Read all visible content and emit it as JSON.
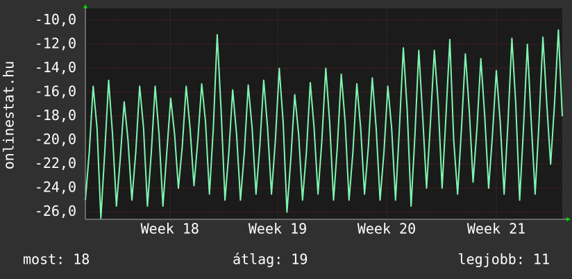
{
  "chart_data": {
    "type": "line",
    "y_label": "onlinestat.hu",
    "series": [
      {
        "name": "onlinestat.hu",
        "color": "#7ff5b0",
        "values": [
          -25,
          -21,
          -15.5,
          -19,
          -26.5,
          -21,
          -15,
          -19.5,
          -25.5,
          -21.5,
          -16.8,
          -20,
          -25,
          -21,
          -15.5,
          -19,
          -25.5,
          -21,
          -15.5,
          -19.5,
          -25.5,
          -21,
          -16.5,
          -19.5,
          -24,
          -20.5,
          -15.5,
          -19,
          -23.8,
          -20,
          -15.3,
          -18.5,
          -24.5,
          -19,
          -11.2,
          -17.5,
          -25,
          -21,
          -15.8,
          -19.5,
          -25,
          -21,
          -15.4,
          -19,
          -24.5,
          -20.5,
          -15,
          -19,
          -24.5,
          -20,
          -14,
          -18.5,
          -26,
          -21.5,
          -16.2,
          -19.5,
          -25,
          -21,
          -15.2,
          -19,
          -24.5,
          -20,
          -14,
          -18.5,
          -25,
          -20.5,
          -14.5,
          -18.5,
          -25,
          -21,
          -15.3,
          -19,
          -24.5,
          -20.5,
          -14.8,
          -19,
          -25,
          -21,
          -15.5,
          -19,
          -25,
          -19,
          -12.3,
          -17.5,
          -25.5,
          -19.5,
          -12.5,
          -18,
          -24,
          -18.5,
          -12.5,
          -17,
          -24,
          -18,
          -11.6,
          -20,
          -24.5,
          -19,
          -12.8,
          -17.5,
          -23.5,
          -19,
          -13.2,
          -18,
          -24,
          -19.5,
          -14.2,
          -18.5,
          -24.5,
          -18.5,
          -11.5,
          -17,
          -25,
          -19,
          -12,
          -18.5,
          -24.5,
          -18.5,
          -11.4,
          -17,
          -22,
          -17,
          -10.8,
          -18
        ]
      }
    ],
    "xlim": [
      0,
      123
    ],
    "xticks": [
      {
        "value": 21.8,
        "label": "Week 18"
      },
      {
        "value": 49.6,
        "label": "Week 19"
      },
      {
        "value": 77.7,
        "label": "Week 20"
      },
      {
        "value": 106,
        "label": "Week 21"
      }
    ],
    "ylim": [
      -26.6,
      -9
    ],
    "yticks": [
      {
        "value": -10,
        "label": "-10,0"
      },
      {
        "value": -12,
        "label": "-12,0"
      },
      {
        "value": -14,
        "label": "-14,0"
      },
      {
        "value": -16,
        "label": "-16,0"
      },
      {
        "value": -18,
        "label": "-18,0"
      },
      {
        "value": -20,
        "label": "-20,0"
      },
      {
        "value": -22,
        "label": "-22,0"
      },
      {
        "value": -24,
        "label": "-24,0"
      },
      {
        "value": -26,
        "label": "-26,0"
      }
    ],
    "grid": true,
    "footer": [
      "most: 18",
      "átlag: 19",
      "legjobb: 11"
    ]
  }
}
